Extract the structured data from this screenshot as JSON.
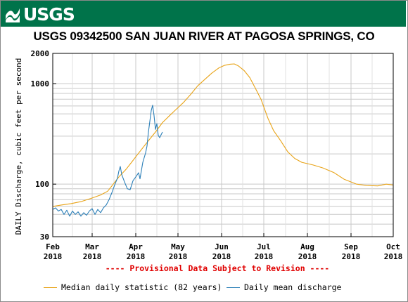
{
  "banner": {
    "logo_text": "USGS",
    "color": "#00734a"
  },
  "chart_data": {
    "type": "line",
    "title": "USGS 09342500 SAN JUAN RIVER AT PAGOSA SPRINGS, CO",
    "ylabel": "DAILY Discharge, cubic feet per second",
    "yscale": "log",
    "ylim": [
      30,
      2000
    ],
    "yticks": [
      {
        "value": 30,
        "label": "30"
      },
      {
        "value": 100,
        "label": "100"
      },
      {
        "value": 1000,
        "label": "1000"
      },
      {
        "value": 2000,
        "label": "2000"
      }
    ],
    "xlim": [
      "2018-02-01",
      "2018-10-01"
    ],
    "xticks": [
      {
        "date": "2018-02-01",
        "month": "Feb",
        "year": "2018"
      },
      {
        "date": "2018-03-01",
        "month": "Mar",
        "year": "2018"
      },
      {
        "date": "2018-04-01",
        "month": "Apr",
        "year": "2018"
      },
      {
        "date": "2018-05-01",
        "month": "May",
        "year": "2018"
      },
      {
        "date": "2018-06-01",
        "month": "Jun",
        "year": "2018"
      },
      {
        "date": "2018-07-01",
        "month": "Jul",
        "year": "2018"
      },
      {
        "date": "2018-08-01",
        "month": "Aug",
        "year": "2018"
      },
      {
        "date": "2018-09-01",
        "month": "Sep",
        "year": "2018"
      },
      {
        "date": "2018-10-01",
        "month": "Oct",
        "year": "2018"
      }
    ],
    "grid": true,
    "legend_position": "bottom",
    "series": [
      {
        "name": "Median daily statistic (82 years)",
        "color": "#e8a317",
        "points": [
          [
            "2018-02-01",
            60
          ],
          [
            "2018-02-07",
            62
          ],
          [
            "2018-02-14",
            64
          ],
          [
            "2018-02-21",
            67
          ],
          [
            "2018-02-28",
            72
          ],
          [
            "2018-03-07",
            78
          ],
          [
            "2018-03-12",
            85
          ],
          [
            "2018-03-16",
            100
          ],
          [
            "2018-03-20",
            118
          ],
          [
            "2018-03-25",
            140
          ],
          [
            "2018-03-29",
            165
          ],
          [
            "2018-04-02",
            195
          ],
          [
            "2018-04-06",
            230
          ],
          [
            "2018-04-10",
            270
          ],
          [
            "2018-04-15",
            330
          ],
          [
            "2018-04-20",
            410
          ],
          [
            "2018-04-25",
            480
          ],
          [
            "2018-04-30",
            560
          ],
          [
            "2018-05-05",
            650
          ],
          [
            "2018-05-10",
            780
          ],
          [
            "2018-05-15",
            950
          ],
          [
            "2018-05-20",
            1100
          ],
          [
            "2018-05-25",
            1270
          ],
          [
            "2018-05-30",
            1430
          ],
          [
            "2018-06-03",
            1520
          ],
          [
            "2018-06-07",
            1560
          ],
          [
            "2018-06-10",
            1570
          ],
          [
            "2018-06-13",
            1500
          ],
          [
            "2018-06-17",
            1350
          ],
          [
            "2018-06-21",
            1150
          ],
          [
            "2018-06-25",
            900
          ],
          [
            "2018-06-29",
            700
          ],
          [
            "2018-07-04",
            450
          ],
          [
            "2018-07-08",
            340
          ],
          [
            "2018-07-13",
            270
          ],
          [
            "2018-07-18",
            210
          ],
          [
            "2018-07-23",
            180
          ],
          [
            "2018-07-28",
            165
          ],
          [
            "2018-08-05",
            155
          ],
          [
            "2018-08-12",
            145
          ],
          [
            "2018-08-20",
            130
          ],
          [
            "2018-08-27",
            112
          ],
          [
            "2018-09-05",
            100
          ],
          [
            "2018-09-12",
            97
          ],
          [
            "2018-09-20",
            96
          ],
          [
            "2018-09-26",
            100
          ],
          [
            "2018-10-01",
            98
          ]
        ]
      },
      {
        "name": "Daily mean discharge",
        "color": "#2b7fb8",
        "points": [
          [
            "2018-02-01",
            56
          ],
          [
            "2018-02-03",
            58
          ],
          [
            "2018-02-05",
            54
          ],
          [
            "2018-02-07",
            56
          ],
          [
            "2018-02-09",
            50
          ],
          [
            "2018-02-11",
            55
          ],
          [
            "2018-02-13",
            48
          ],
          [
            "2018-02-15",
            54
          ],
          [
            "2018-02-17",
            50
          ],
          [
            "2018-02-19",
            53
          ],
          [
            "2018-02-21",
            48
          ],
          [
            "2018-02-23",
            52
          ],
          [
            "2018-02-25",
            49
          ],
          [
            "2018-02-27",
            54
          ],
          [
            "2018-03-01",
            57
          ],
          [
            "2018-03-03",
            50
          ],
          [
            "2018-03-05",
            56
          ],
          [
            "2018-03-07",
            52
          ],
          [
            "2018-03-09",
            58
          ],
          [
            "2018-03-11",
            62
          ],
          [
            "2018-03-13",
            70
          ],
          [
            "2018-03-15",
            82
          ],
          [
            "2018-03-17",
            98
          ],
          [
            "2018-03-19",
            115
          ],
          [
            "2018-03-20",
            135
          ],
          [
            "2018-03-21",
            150
          ],
          [
            "2018-03-22",
            125
          ],
          [
            "2018-03-24",
            105
          ],
          [
            "2018-03-26",
            90
          ],
          [
            "2018-03-28",
            88
          ],
          [
            "2018-03-30",
            108
          ],
          [
            "2018-04-01",
            118
          ],
          [
            "2018-04-03",
            130
          ],
          [
            "2018-04-04",
            113
          ],
          [
            "2018-04-06",
            165
          ],
          [
            "2018-04-08",
            205
          ],
          [
            "2018-04-09",
            240
          ],
          [
            "2018-04-10",
            330
          ],
          [
            "2018-04-12",
            540
          ],
          [
            "2018-04-13",
            610
          ],
          [
            "2018-04-14",
            480
          ],
          [
            "2018-04-15",
            350
          ],
          [
            "2018-04-16",
            400
          ],
          [
            "2018-04-17",
            305
          ],
          [
            "2018-04-18",
            290
          ],
          [
            "2018-04-19",
            310
          ],
          [
            "2018-04-20",
            330
          ]
        ]
      }
    ]
  },
  "provisional_note": "---- Provisional Data Subject to Revision ----",
  "legend": {
    "median_label": "Median daily statistic (82 years)",
    "mean_label": "Daily mean discharge"
  }
}
